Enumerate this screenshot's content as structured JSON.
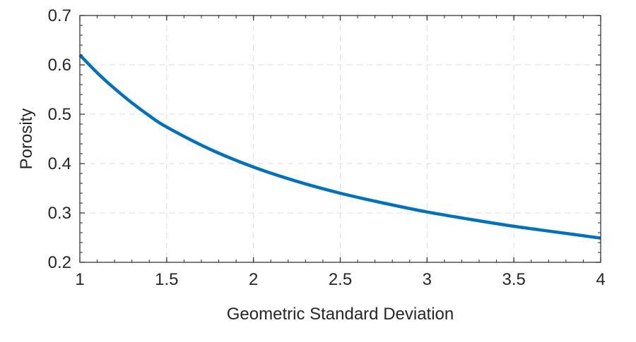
{
  "chart_data": {
    "type": "line",
    "title": "",
    "xlabel": "Geometric Standard Deviation",
    "ylabel": "Porosity",
    "xlim": [
      1,
      4
    ],
    "ylim": [
      0.2,
      0.7
    ],
    "xticks": [
      1,
      1.5,
      2,
      2.5,
      3,
      3.5,
      4
    ],
    "yticks": [
      0.2,
      0.3,
      0.4,
      0.5,
      0.6,
      0.7
    ],
    "xtick_labels": [
      "1",
      "1.5",
      "2",
      "2.5",
      "3",
      "3.5",
      "4"
    ],
    "ytick_labels": [
      "0.2",
      "0.3",
      "0.4",
      "0.5",
      "0.6",
      "0.7"
    ],
    "grid": true,
    "legend": "none",
    "line_color": "#0072BD",
    "series": [
      {
        "x": [
          1.0,
          1.1,
          1.2,
          1.3,
          1.4,
          1.5,
          1.75,
          2.0,
          2.25,
          2.5,
          2.75,
          3.0,
          3.25,
          3.5,
          3.75,
          4.0
        ],
        "y": [
          0.62,
          0.584,
          0.552,
          0.523,
          0.497,
          0.474,
          0.429,
          0.393,
          0.364,
          0.34,
          0.32,
          0.302,
          0.287,
          0.273,
          0.261,
          0.249
        ]
      }
    ]
  }
}
